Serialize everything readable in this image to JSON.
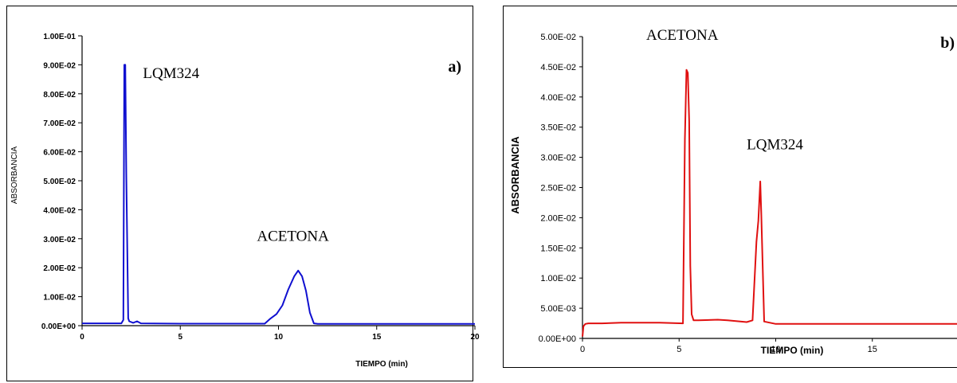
{
  "chart_data": [
    {
      "type": "line",
      "panel_label": "a)",
      "xlabel": "TIEMPO (min)",
      "ylabel": "ABSORBANCIA",
      "xlim": [
        0,
        20
      ],
      "ylim": [
        0,
        0.1
      ],
      "x_ticks": [
        "0",
        "5",
        "10",
        "15",
        "20"
      ],
      "y_ticks": [
        "0.00E+00",
        "1.00E-02",
        "2.00E-02",
        "3.00E-02",
        "4.00E-02",
        "5.00E-02",
        "6.00E-02",
        "7.00E-02",
        "8.00E-02",
        "9.00E-02",
        "1.00E-01"
      ],
      "grid": false,
      "line_color": "#1010d0",
      "annotations": [
        {
          "text": "LQM324",
          "x": 3.1,
          "y": 0.0855
        },
        {
          "text": "ACETONA",
          "x": 8.9,
          "y": 0.0293
        }
      ],
      "series": [
        {
          "x": [
            0,
            2.0,
            2.1,
            2.15,
            2.2,
            2.25,
            2.35,
            2.4,
            2.6,
            2.8,
            3.0,
            5.0,
            9.3,
            9.6,
            9.9,
            10.2,
            10.5,
            10.8,
            11.0,
            11.2,
            11.4,
            11.6,
            11.8,
            12.0,
            20
          ],
          "y": [
            0.0008,
            0.0008,
            0.002,
            0.09,
            0.09,
            0.052,
            0.0025,
            0.0015,
            0.001,
            0.0015,
            0.0008,
            0.0007,
            0.0007,
            0.0025,
            0.004,
            0.007,
            0.0125,
            0.017,
            0.019,
            0.017,
            0.012,
            0.0045,
            0.0008,
            0.0006,
            0.0006
          ]
        }
      ]
    },
    {
      "type": "line",
      "panel_label": "b)",
      "xlabel": "TIEMPO (min)",
      "ylabel": "ABSORBANCIA",
      "xlim": [
        0,
        20
      ],
      "ylim": [
        0,
        0.05
      ],
      "x_ticks": [
        "0",
        "5",
        "10",
        "15"
      ],
      "y_ticks": [
        "0.00E+00",
        "5.00E-03",
        "1.00E-02",
        "1.50E-02",
        "2.00E-02",
        "2.50E-02",
        "3.00E-02",
        "3.50E-02",
        "4.00E-02",
        "4.50E-02",
        "5.00E-02"
      ],
      "grid": false,
      "line_color": "#e01010",
      "annotations": [
        {
          "text": "ACETONA",
          "x": 3.3,
          "y": 0.0495
        },
        {
          "text": "LQM324",
          "x": 8.5,
          "y": 0.0313
        }
      ],
      "series": [
        {
          "x": [
            0,
            0.05,
            0.15,
            0.3,
            1.0,
            2.0,
            3.0,
            4.0,
            5.2,
            5.3,
            5.38,
            5.45,
            5.52,
            5.58,
            5.65,
            5.75,
            6.0,
            7.0,
            7.5,
            8.5,
            8.8,
            9.0,
            9.1,
            9.2,
            9.25,
            9.4,
            10.0,
            12.0,
            15.0,
            20.0
          ],
          "y": [
            0.0003,
            0.002,
            0.0024,
            0.0025,
            0.0025,
            0.0026,
            0.0026,
            0.0026,
            0.0025,
            0.033,
            0.0445,
            0.044,
            0.036,
            0.012,
            0.004,
            0.003,
            0.003,
            0.0031,
            0.003,
            0.0027,
            0.003,
            0.016,
            0.0195,
            0.026,
            0.021,
            0.0028,
            0.0024,
            0.0024,
            0.0024,
            0.0024
          ]
        }
      ]
    }
  ]
}
